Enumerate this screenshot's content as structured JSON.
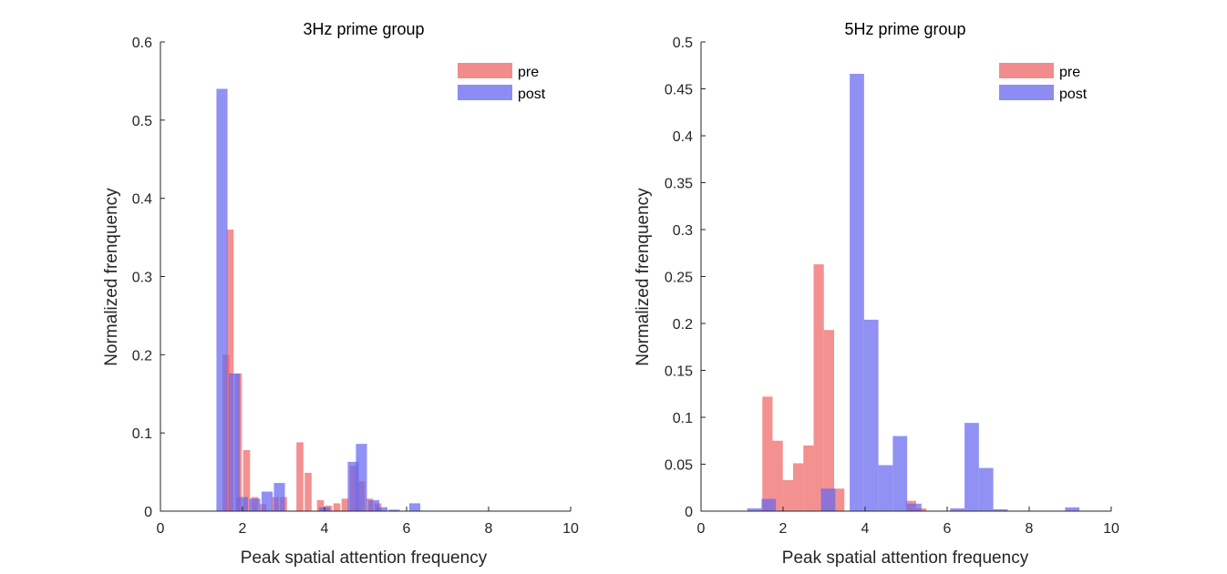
{
  "chart_data": [
    {
      "type": "bar",
      "title": "3Hz prime group",
      "xlabel": "Peak spatial attention frequency",
      "ylabel": "Normalized frenquency",
      "xlim": [
        0,
        10
      ],
      "ylim": [
        0,
        0.6
      ],
      "xticks": [
        "0",
        "2",
        "4",
        "6",
        "8",
        "10"
      ],
      "yticks": [
        "0",
        "0.1",
        "0.2",
        "0.3",
        "0.4",
        "0.5",
        "0.6"
      ],
      "legend_position": "top-right",
      "grid": false,
      "series": [
        {
          "name": "pre",
          "color": "#EE6666",
          "bin_width": 0.17,
          "x": [
            1.6,
            1.7,
            1.9,
            2.1,
            2.3,
            2.5,
            2.8,
            3.0,
            3.4,
            3.6,
            3.9,
            4.1,
            4.3,
            4.5,
            4.7,
            4.9,
            5.1,
            5.3
          ],
          "values": [
            0.2,
            0.36,
            0.176,
            0.078,
            0.018,
            0.009,
            0.018,
            0.018,
            0.088,
            0.049,
            0.014,
            0.007,
            0.01,
            0.016,
            0.058,
            0.038,
            0.016,
            0.01
          ]
        },
        {
          "name": "post",
          "color": "#6666EE",
          "bin_width": 0.27,
          "x": [
            1.5,
            1.8,
            2.0,
            2.3,
            2.6,
            2.9,
            3.2,
            4.0,
            4.7,
            4.9,
            5.2,
            5.4,
            5.7,
            6.2
          ],
          "values": [
            0.54,
            0.176,
            0.018,
            0.016,
            0.025,
            0.036,
            0.0,
            0.005,
            0.063,
            0.086,
            0.014,
            0.005,
            0.002,
            0.01
          ]
        }
      ]
    },
    {
      "type": "bar",
      "title": "5Hz prime group",
      "xlabel": "Peak spatial attention frequency",
      "ylabel": "Normalized frenquency",
      "xlim": [
        0,
        10
      ],
      "ylim": [
        0,
        0.5
      ],
      "xticks": [
        "0",
        "2",
        "4",
        "6",
        "8",
        "10"
      ],
      "yticks": [
        "0",
        "0.05",
        "0.1",
        "0.15",
        "0.2",
        "0.25",
        "0.3",
        "0.35",
        "0.4",
        "0.45",
        "0.5"
      ],
      "legend_position": "top-right",
      "grid": false,
      "series": [
        {
          "name": "pre",
          "color": "#EE6666",
          "bin_width": 0.25,
          "x": [
            1.37,
            1.62,
            1.87,
            2.12,
            2.37,
            2.62,
            2.87,
            3.12,
            3.37,
            5.12,
            5.37
          ],
          "values": [
            0.0,
            0.122,
            0.075,
            0.033,
            0.051,
            0.07,
            0.263,
            0.193,
            0.024,
            0.011,
            0.003
          ],
          "values_note": "pre"
        },
        {
          "name": "post",
          "color": "#6666EE",
          "bin_width": 0.35,
          "x": [
            1.3,
            1.65,
            3.1,
            3.45,
            3.8,
            4.15,
            4.5,
            4.85,
            5.2,
            6.25,
            6.6,
            6.95,
            7.3,
            9.05
          ],
          "values": [
            0.003,
            0.013,
            0.024,
            0.0,
            0.466,
            0.204,
            0.049,
            0.08,
            0.008,
            0.003,
            0.094,
            0.046,
            0.002,
            0.004
          ]
        }
      ]
    }
  ]
}
